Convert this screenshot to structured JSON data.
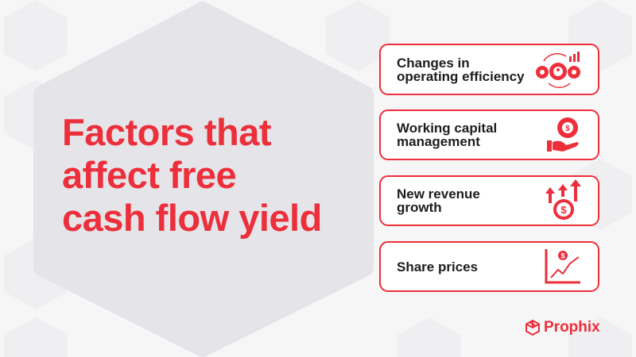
{
  "title": {
    "lines": [
      "Factors that",
      "affect free",
      "cash flow yield"
    ]
  },
  "factors": [
    {
      "label_lines": [
        "Changes in",
        "operating efficiency"
      ],
      "icon": "gears-person-growth-icon"
    },
    {
      "label_lines": [
        "Working capital",
        "management"
      ],
      "icon": "hand-dollar-gear-icon"
    },
    {
      "label_lines": [
        "New revenue",
        "growth"
      ],
      "icon": "dollar-arrows-up-icon"
    },
    {
      "label_lines": [
        "Share prices"
      ],
      "icon": "stock-chart-icon"
    }
  ],
  "brand": {
    "name": "Prophix",
    "color": "#ec2f3b"
  }
}
